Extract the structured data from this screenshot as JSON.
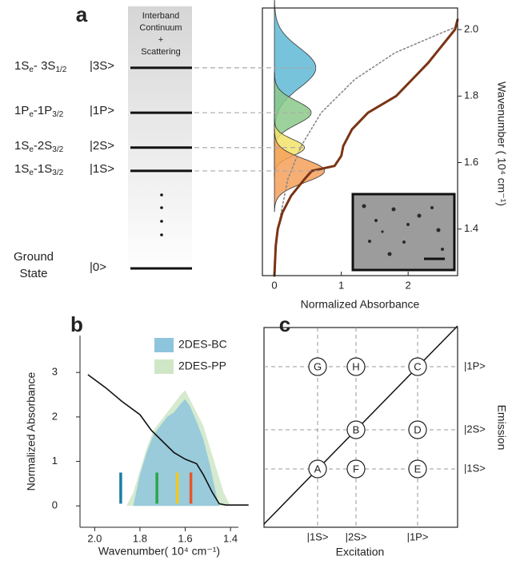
{
  "panel_a": {
    "label": "a",
    "continuum": [
      "Interband",
      "Continuum",
      "+",
      "Scattering"
    ],
    "levels": [
      {
        "label": [
          "1S",
          "e",
          "- 3S",
          "1/2"
        ],
        "state": "|3S>"
      },
      {
        "label": [
          "1P",
          "e",
          "-1P",
          "3/2"
        ],
        "state": "|1P>"
      },
      {
        "label": [
          "1S",
          "e",
          "-2S",
          "3/2"
        ],
        "state": "|2S>"
      },
      {
        "label": [
          "1S",
          "e",
          "-1S",
          "3/2"
        ],
        "state": "|1S>"
      }
    ],
    "ground": {
      "label": [
        "Ground",
        "State"
      ],
      "state": "|0>"
    }
  },
  "panel_b": {
    "label": "b"
  },
  "panel_c": {
    "label": "c",
    "x_axis": "Excitation",
    "y_axis": "Emission",
    "x_states": [
      "|1S>",
      "|2S>",
      "|1P>"
    ],
    "y_states": [
      "|1S>",
      "|2S>",
      "|1P>"
    ],
    "nodes": [
      "G",
      "H",
      "C",
      "B",
      "D",
      "A",
      "F",
      "E"
    ]
  },
  "chart_data": [
    {
      "type": "line",
      "xlabel": "Normalized Absorbance",
      "ylabel": "Wavenumber ( 10⁴ cm⁻¹)",
      "xlim": [
        -0.18,
        2.74
      ],
      "ylim": [
        1.26,
        2.065
      ],
      "xticks": [
        0,
        1,
        2
      ],
      "yticks": [
        1.4,
        1.6,
        1.8,
        {
          "value": 2,
          "label": "2.0"
        }
      ],
      "peaks": [
        {
          "color": "#5fb8d6",
          "center": 1.885,
          "amplitude": 0.62,
          "width": 0.06
        },
        {
          "color": "#8cc98a",
          "center": 1.75,
          "amplitude": 0.55,
          "width": 0.035
        },
        {
          "color": "#f3e36a",
          "center": 1.645,
          "amplitude": 0.45,
          "width": 0.025
        },
        {
          "color": "#f5a05a",
          "center": 1.575,
          "amplitude": 0.75,
          "width": 0.035
        }
      ],
      "series": [
        {
          "color": "#888888",
          "style": "dotted",
          "x": [
            0.0,
            0.05,
            0.2,
            0.4,
            0.7,
            1.2,
            1.8,
            2.5,
            2.74
          ],
          "y": [
            1.3,
            1.4,
            1.55,
            1.65,
            1.75,
            1.85,
            1.93,
            1.99,
            2.01
          ]
        },
        {
          "color": "#7a3414",
          "style": "solid",
          "x": [
            0.0,
            0.02,
            0.05,
            0.12,
            0.25,
            0.45,
            0.56,
            0.9,
            1.0,
            1.03,
            1.16,
            1.4,
            1.82,
            2.06,
            2.3,
            2.5,
            2.7,
            2.74
          ],
          "y": [
            1.26,
            1.35,
            1.4,
            1.45,
            1.5,
            1.55,
            1.575,
            1.59,
            1.62,
            1.65,
            1.7,
            1.75,
            1.8,
            1.85,
            1.9,
            1.95,
            2.0,
            2.03
          ]
        }
      ]
    },
    {
      "type": "line",
      "xlabel": "Wavenumber( 10⁴ cm⁻¹)",
      "ylabel": "Normalized Absorbance",
      "xlim": [
        2.065,
        1.365
      ],
      "ylim": [
        -0.48,
        3.83
      ],
      "xticks": [
        {
          "value": 2,
          "label": "2.0"
        },
        1.8,
        1.6,
        1.4
      ],
      "yticks": [
        0,
        1,
        2,
        3
      ],
      "legend": "upper right",
      "series": [
        {
          "name": "2DES-BC",
          "color": "#8ec5dc",
          "style": "area",
          "x": [
            1.83,
            1.8,
            1.77,
            1.74,
            1.71,
            1.68,
            1.65,
            1.62,
            1.6,
            1.58,
            1.55,
            1.52,
            1.49,
            1.46,
            1.45
          ],
          "values": [
            0,
            0.7,
            1.2,
            1.6,
            1.8,
            2.0,
            2.1,
            2.3,
            2.4,
            2.25,
            1.9,
            1.5,
            0.9,
            0.2,
            0
          ]
        },
        {
          "name": "2DES-PP",
          "color": "#cfe6c7",
          "style": "area",
          "x": [
            1.86,
            1.83,
            1.8,
            1.77,
            1.74,
            1.71,
            1.68,
            1.65,
            1.62,
            1.6,
            1.58,
            1.55,
            1.52,
            1.49,
            1.46,
            1.43,
            1.4
          ],
          "values": [
            0,
            0.3,
            0.8,
            1.3,
            1.7,
            1.9,
            2.1,
            2.3,
            2.5,
            2.6,
            2.4,
            2.1,
            1.8,
            1.3,
            0.8,
            0.3,
            0
          ]
        },
        {
          "color": "#111111",
          "style": "solid",
          "x": [
            2.03,
            1.95,
            1.88,
            1.8,
            1.75,
            1.7,
            1.65,
            1.6,
            1.55,
            1.52,
            1.48,
            1.45,
            1.42,
            1.32
          ],
          "values": [
            2.95,
            2.65,
            2.35,
            2.05,
            1.7,
            1.45,
            1.2,
            1.05,
            0.95,
            0.7,
            0.3,
            0.05,
            0.02,
            0.02
          ]
        }
      ],
      "markers": {
        "x": [
          1.885,
          1.725,
          1.635,
          1.575
        ],
        "colors": [
          "#1a7fa0",
          "#2ca54a",
          "#f2c81f",
          "#e8552a"
        ],
        "bottom": 0.05,
        "top": 0.75
      }
    }
  ]
}
